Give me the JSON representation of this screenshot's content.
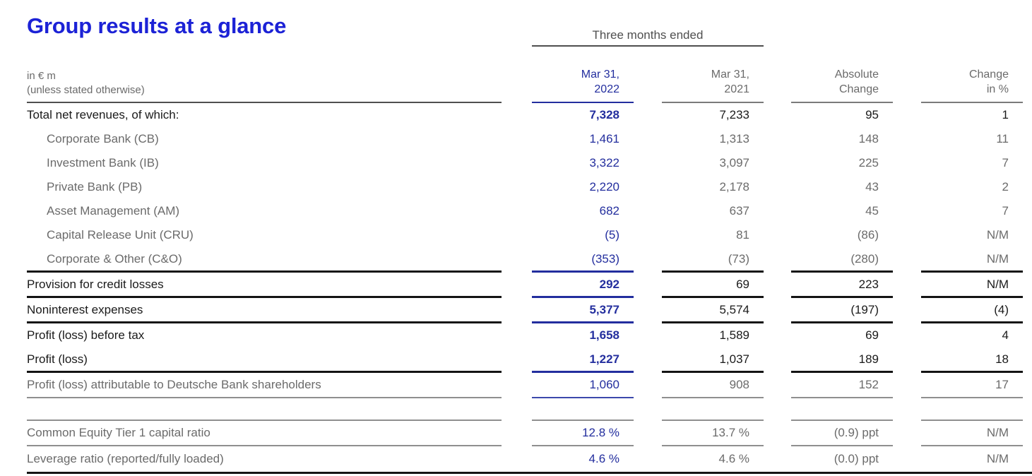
{
  "page": {
    "title": "Group results at a glance"
  },
  "table": {
    "span_header": "Three months ended",
    "unit_label_line1": "in € m",
    "unit_label_line2": "(unless stated otherwise)",
    "columns": [
      {
        "line1": "Mar 31,",
        "line2": "2022",
        "highlight": true
      },
      {
        "line1": "Mar 31,",
        "line2": "2021",
        "highlight": false
      },
      {
        "line1": "Absolute",
        "line2": "Change",
        "highlight": false
      },
      {
        "line1": "Change",
        "line2": "in %",
        "highlight": false
      }
    ],
    "rows": [
      {
        "label": "Total net revenues, of which:",
        "values": [
          "7,328",
          "7,233",
          "95",
          "1"
        ],
        "style": "main",
        "border": "none"
      },
      {
        "label": "Corporate Bank (CB)",
        "values": [
          "1,461",
          "1,313",
          "148",
          "11"
        ],
        "style": "sub",
        "border": "none"
      },
      {
        "label": "Investment Bank (IB)",
        "values": [
          "3,322",
          "3,097",
          "225",
          "7"
        ],
        "style": "sub",
        "border": "none"
      },
      {
        "label": "Private Bank (PB)",
        "values": [
          "2,220",
          "2,178",
          "43",
          "2"
        ],
        "style": "sub",
        "border": "none"
      },
      {
        "label": "Asset Management (AM)",
        "values": [
          "682",
          "637",
          "45",
          "7"
        ],
        "style": "sub",
        "border": "none"
      },
      {
        "label": "Capital Release Unit (CRU)",
        "values": [
          "(5)",
          "81",
          "(86)",
          "N/M"
        ],
        "style": "sub",
        "border": "none"
      },
      {
        "label": "Corporate & Other (C&O)",
        "values": [
          "(353)",
          "(73)",
          "(280)",
          "N/M"
        ],
        "style": "sub",
        "border": "thick"
      },
      {
        "label": "Provision for credit losses",
        "values": [
          "292",
          "69",
          "223",
          "N/M"
        ],
        "style": "main",
        "border": "thick"
      },
      {
        "label": "Noninterest expenses",
        "values": [
          "5,377",
          "5,574",
          "(197)",
          "(4)"
        ],
        "style": "main",
        "border": "thick"
      },
      {
        "label": "Profit (loss) before tax",
        "values": [
          "1,658",
          "1,589",
          "69",
          "4"
        ],
        "style": "main",
        "border": "none"
      },
      {
        "label": "Profit (loss)",
        "values": [
          "1,227",
          "1,037",
          "189",
          "18"
        ],
        "style": "main",
        "border": "thick"
      },
      {
        "label": "Profit (loss) attributable to Deutsche Bank shareholders",
        "values": [
          "1,060",
          "908",
          "152",
          "17"
        ],
        "style": "muted",
        "border": "thin",
        "c1_line": "blue"
      },
      {
        "label": "",
        "values": [
          "",
          "",
          "",
          ""
        ],
        "style": "spacer",
        "border": "thin",
        "c1_line": "gray"
      },
      {
        "label": "Common Equity Tier 1 capital ratio",
        "values": [
          "12.8 %",
          "13.7 %",
          "(0.9) ppt",
          "N/M"
        ],
        "style": "muted",
        "border": "thin",
        "c1_line": "gray"
      },
      {
        "label": "Leverage ratio (reported/fully loaded)",
        "values": [
          "4.6 %",
          "4.6 %",
          "(0.0) ppt",
          "N/M"
        ],
        "style": "muted",
        "border": "full"
      }
    ]
  },
  "colors": {
    "title_blue": "#1c22d6",
    "value_blue": "#232e9e",
    "text_black": "#1a1a1a",
    "text_gray": "#6b6b6b",
    "header_gray": "#4f4f4f",
    "header_line": "#4f4f4f",
    "line_dark": "#141414",
    "line_gray": "#8f8f8f"
  }
}
